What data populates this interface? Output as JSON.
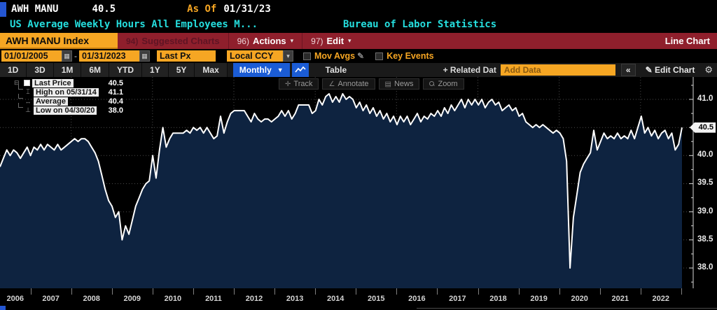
{
  "title_bar": {
    "ticker": "AWH MANU",
    "last_value": "40.5",
    "as_of_label": "As Of",
    "as_of_date": "01/31/23",
    "description": "US Average Weekly Hours All Employees M...",
    "source": "Bureau of Labor Statistics"
  },
  "menu_bar": {
    "security_field": "AWH MANU Index",
    "suggested_key": "94)",
    "suggested_label": "Suggested Charts",
    "actions_key": "96)",
    "actions_label": "Actions",
    "edit_key": "97)",
    "edit_label": "Edit",
    "dropdown_arrow": "▾",
    "right_label": "Line Chart"
  },
  "filter_bar": {
    "start_date": "01/01/2005",
    "end_date": "01/31/2023",
    "dash": "-",
    "price_field": "Last Px",
    "currency_field": "Local CCY",
    "mov_avgs_label": "Mov Avgs",
    "key_events_label": "Key Events",
    "calendar_glyph": "▦",
    "dropdown_glyph": "▾",
    "pencil_glyph": "✎"
  },
  "toolbar": {
    "periods": [
      "1D",
      "3D",
      "1M",
      "6M",
      "YTD",
      "1Y",
      "5Y",
      "Max"
    ],
    "frequency": "Monthly",
    "frequency_arrow": "▼",
    "table_label": "Table",
    "related_data_label": "+ Related Dat",
    "add_data_placeholder": "Add Data",
    "collapse_label": "«",
    "edit_chart_label": "✎ Edit Chart",
    "gear_glyph": "⚙"
  },
  "chart_buttons": [
    {
      "icon": "✛",
      "label": "Track"
    },
    {
      "icon": "∠",
      "label": "Annotate"
    },
    {
      "icon": "▤",
      "label": "News"
    },
    {
      "icon": "mag",
      "label": "Zoom"
    }
  ],
  "legend": {
    "expander": "⊟",
    "rows": [
      {
        "icon": "swatch",
        "label": "Last Price",
        "value": "40.5"
      },
      {
        "icon": "⌶",
        "label": "High on 05/31/14",
        "value": "41.1"
      },
      {
        "icon": "↔",
        "label": "Average",
        "value": "40.4"
      },
      {
        "icon": "⊥",
        "label": "Low on 04/30/20",
        "value": "38.0"
      }
    ]
  },
  "colors": {
    "amber": "#f6a623",
    "menu_red": "#8f1f2c",
    "cyan": "#25dede",
    "blue": "#1b5cd5",
    "area_fill": "#0e2340",
    "line": "#ffffff",
    "grid": "#4a4a4a",
    "axis_text": "#ececec"
  },
  "chart_data": {
    "type": "line",
    "title": "AWH MANU Index - US Average Weekly Hours All Employees Manufacturing",
    "frequency": "monthly",
    "x_start": "2006-04",
    "x_end": "2023-01",
    "last_price": 40.5,
    "high": {
      "date": "05/31/14",
      "value": 41.1
    },
    "average": 40.4,
    "low": {
      "date": "04/30/20",
      "value": 38.0
    },
    "ylim": [
      37.6,
      41.4
    ],
    "yticks": [
      38.0,
      38.5,
      39.0,
      39.5,
      40.0,
      40.5,
      41.0
    ],
    "ytick_labels": [
      "38.0",
      "38.5",
      "39.0",
      "39.5",
      "40.0",
      "40.5",
      "41.0"
    ],
    "year_labels": [
      "2006",
      "2007",
      "2008",
      "2009",
      "2010",
      "2011",
      "2012",
      "2013",
      "2014",
      "2015",
      "2016",
      "2017",
      "2018",
      "2019",
      "2020",
      "2021",
      "2022"
    ],
    "grid_vertical_years": [
      2008,
      2010,
      2012,
      2014,
      2016,
      2018,
      2020,
      2022
    ],
    "values": [
      39.8,
      39.95,
      40.1,
      40.0,
      40.1,
      40.05,
      39.95,
      40.05,
      40.15,
      40.0,
      40.15,
      40.1,
      40.2,
      40.1,
      40.2,
      40.15,
      40.1,
      40.2,
      40.1,
      40.15,
      40.2,
      40.25,
      40.3,
      40.25,
      40.3,
      40.3,
      40.25,
      40.15,
      40.05,
      39.9,
      39.65,
      39.4,
      39.2,
      39.1,
      38.9,
      39.0,
      38.5,
      38.75,
      38.6,
      38.85,
      39.1,
      39.25,
      39.4,
      39.5,
      39.55,
      40.0,
      39.6,
      40.1,
      40.5,
      40.15,
      40.3,
      40.4,
      40.4,
      40.4,
      40.4,
      40.45,
      40.4,
      40.5,
      40.45,
      40.5,
      40.4,
      40.5,
      40.4,
      40.3,
      40.35,
      40.7,
      40.4,
      40.6,
      40.75,
      40.8,
      40.8,
      40.8,
      40.8,
      40.7,
      40.6,
      40.75,
      40.65,
      40.6,
      40.65,
      40.65,
      40.6,
      40.65,
      40.7,
      40.8,
      40.7,
      40.8,
      40.65,
      40.75,
      40.9,
      40.9,
      40.9,
      40.9,
      40.75,
      40.8,
      41.0,
      40.9,
      41.05,
      41.1,
      40.95,
      41.05,
      40.95,
      41.1,
      41.0,
      41.05,
      41.0,
      40.85,
      40.95,
      40.8,
      40.9,
      40.75,
      40.85,
      40.7,
      40.8,
      40.65,
      40.75,
      40.6,
      40.7,
      40.55,
      40.7,
      40.6,
      40.7,
      40.55,
      40.65,
      40.75,
      40.6,
      40.7,
      40.65,
      40.75,
      40.7,
      40.8,
      40.7,
      40.85,
      40.75,
      40.9,
      40.8,
      40.9,
      41.0,
      40.85,
      41.0,
      40.9,
      41.0,
      40.9,
      41.0,
      40.85,
      40.95,
      41.0,
      40.9,
      40.95,
      40.8,
      40.85,
      40.9,
      40.8,
      40.85,
      40.7,
      40.75,
      40.6,
      40.55,
      40.5,
      40.55,
      40.5,
      40.55,
      40.5,
      40.45,
      40.4,
      40.45,
      40.4,
      40.3,
      39.9,
      38.0,
      38.9,
      39.3,
      39.7,
      39.85,
      39.95,
      40.05,
      40.45,
      40.1,
      40.25,
      40.4,
      40.3,
      40.35,
      40.3,
      40.4,
      40.3,
      40.35,
      40.3,
      40.45,
      40.3,
      40.5,
      40.7,
      40.4,
      40.5,
      40.35,
      40.45,
      40.3,
      40.4,
      40.45,
      40.3,
      40.4,
      40.1,
      40.2,
      40.5
    ]
  }
}
